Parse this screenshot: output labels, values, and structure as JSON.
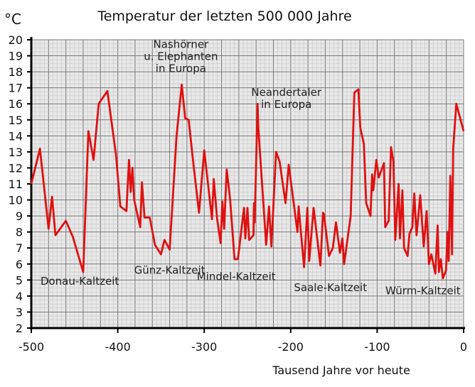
{
  "chart_data": {
    "type": "line",
    "title": "Temperatur der letzten 500 000 Jahre",
    "ylabel": "°C",
    "xlabel": "Tausend Jahre vor heute",
    "xlim": [
      -500,
      0
    ],
    "ylim": [
      2,
      20
    ],
    "xticks": [
      -500,
      -400,
      -300,
      -200,
      -100,
      0
    ],
    "yticks": [
      2,
      3,
      4,
      5,
      6,
      7,
      8,
      9,
      10,
      11,
      12,
      13,
      14,
      15,
      16,
      17,
      18,
      19,
      20
    ],
    "grid": true,
    "line_color": "#e01010",
    "series": [
      {
        "name": "Temperatur",
        "points": [
          [
            -500,
            11
          ],
          [
            -490,
            13.2
          ],
          [
            -480,
            8.2
          ],
          [
            -476,
            10.2
          ],
          [
            -472,
            7.8
          ],
          [
            -460,
            8.7
          ],
          [
            -452,
            7.7
          ],
          [
            -440,
            5.5
          ],
          [
            -434,
            14.3
          ],
          [
            -428,
            12.5
          ],
          [
            -422,
            16
          ],
          [
            -412,
            16.8
          ],
          [
            -402,
            12.8
          ],
          [
            -397,
            9.6
          ],
          [
            -390,
            9.3
          ],
          [
            -387,
            12.5
          ],
          [
            -385,
            10.5
          ],
          [
            -383,
            12
          ],
          [
            -381,
            10
          ],
          [
            -374,
            8.3
          ],
          [
            -372,
            11.1
          ],
          [
            -369,
            8.9
          ],
          [
            -363,
            8.9
          ],
          [
            -357,
            7.2
          ],
          [
            -350,
            6.6
          ],
          [
            -346,
            7.5
          ],
          [
            -340,
            6.9
          ],
          [
            -332,
            14
          ],
          [
            -326,
            17.2
          ],
          [
            -322,
            15.1
          ],
          [
            -318,
            15
          ],
          [
            -312,
            12
          ],
          [
            -306,
            9.2
          ],
          [
            -300,
            13.1
          ],
          [
            -291,
            8.8
          ],
          [
            -289,
            11.3
          ],
          [
            -285,
            8.8
          ],
          [
            -281,
            7.3
          ],
          [
            -279,
            9.9
          ],
          [
            -277,
            8.2
          ],
          [
            -274,
            11.9
          ],
          [
            -270,
            10
          ],
          [
            -265,
            6.3
          ],
          [
            -261,
            6.3
          ],
          [
            -254,
            9.5
          ],
          [
            -252.5,
            7.6
          ],
          [
            -250,
            9.5
          ],
          [
            -248,
            7.5
          ],
          [
            -243,
            7.8
          ],
          [
            -242.4,
            9.8
          ],
          [
            -241.6,
            8.6
          ],
          [
            -238.3,
            16
          ],
          [
            -237.4,
            14.5
          ],
          [
            -228.4,
            7.2
          ],
          [
            -225.1,
            9.6
          ],
          [
            -222.3,
            7.1
          ],
          [
            -216.9,
            13
          ],
          [
            -212.8,
            12.4
          ],
          [
            -205.9,
            9.8
          ],
          [
            -202.3,
            12.2
          ],
          [
            -192.2,
            8
          ],
          [
            -190.8,
            9.6
          ],
          [
            -184.5,
            5.8
          ],
          [
            -180.7,
            9.5
          ],
          [
            -178.5,
            6.2
          ],
          [
            -173.5,
            9.5
          ],
          [
            -165.6,
            5.9
          ],
          [
            -162.6,
            9.2
          ],
          [
            -161.5,
            9.1
          ],
          [
            -155.7,
            6.5
          ],
          [
            -151.2,
            7
          ],
          [
            -147.6,
            8.6
          ],
          [
            -143,
            6.7
          ],
          [
            -140.2,
            7.6
          ],
          [
            -138.2,
            6
          ],
          [
            -130.6,
            9
          ],
          [
            -126.4,
            16.7
          ],
          [
            -121.7,
            16.9
          ],
          [
            -119.5,
            14.5
          ],
          [
            -115.4,
            13.5
          ],
          [
            -112.7,
            9.8
          ],
          [
            -107.7,
            9
          ],
          [
            -105.8,
            11.6
          ],
          [
            -104.4,
            10.6
          ],
          [
            -100.9,
            12.5
          ],
          [
            -98.2,
            11.4
          ],
          [
            -92.1,
            12.3
          ],
          [
            -90.7,
            8.3
          ],
          [
            -86.7,
            8.7
          ],
          [
            -84,
            13.3
          ],
          [
            -81.2,
            12.4
          ],
          [
            -79,
            7.5
          ],
          [
            -75.2,
            11
          ],
          [
            -73.6,
            7.6
          ],
          [
            -70.8,
            10.6
          ],
          [
            -68.9,
            7
          ],
          [
            -64.8,
            6.5
          ],
          [
            -62.6,
            7.9
          ],
          [
            -59.3,
            8.3
          ],
          [
            -57.1,
            10.4
          ],
          [
            -54.4,
            7.8
          ],
          [
            -50.2,
            10.3
          ],
          [
            -46.1,
            7.1
          ],
          [
            -42.8,
            9.3
          ],
          [
            -40.1,
            6
          ],
          [
            -37.3,
            6.6
          ],
          [
            -32.7,
            5.4
          ],
          [
            -30,
            8.4
          ],
          [
            -28.6,
            5.5
          ],
          [
            -26.3,
            6.3
          ],
          [
            -24.1,
            5.1
          ],
          [
            -20.3,
            5.6
          ],
          [
            -18.7,
            8
          ],
          [
            -17.3,
            6.2
          ],
          [
            -15.4,
            11.5
          ],
          [
            -13.4,
            6.6
          ],
          [
            -12.1,
            13.2
          ],
          [
            -8.5,
            16
          ],
          [
            0,
            14.3
          ]
        ]
      }
    ],
    "annotations": [
      {
        "id": "nashoerner",
        "lines": [
          "Nashörner",
          "u. Elephanten",
          "in Europa"
        ],
        "x": -327,
        "y": 19.5
      },
      {
        "id": "neandertaler",
        "lines": [
          "Neandertaler",
          "in Europa"
        ],
        "x": -205,
        "y": 16.5
      },
      {
        "id": "donau",
        "lines": [
          "Donau-Kaltzeit"
        ],
        "x": -444,
        "y": 4.7
      },
      {
        "id": "guenz",
        "lines": [
          "Günz-Kaltzeit"
        ],
        "x": -340,
        "y": 5.4
      },
      {
        "id": "mindel",
        "lines": [
          "Mindel-Kaltzeit"
        ],
        "x": -263,
        "y": 5.0
      },
      {
        "id": "saale",
        "lines": [
          "Saale-Kaltzeit"
        ],
        "x": -154,
        "y": 4.3
      },
      {
        "id": "wuerm",
        "lines": [
          "Würm-Kaltzeit"
        ],
        "x": -47,
        "y": 4.1
      }
    ]
  }
}
